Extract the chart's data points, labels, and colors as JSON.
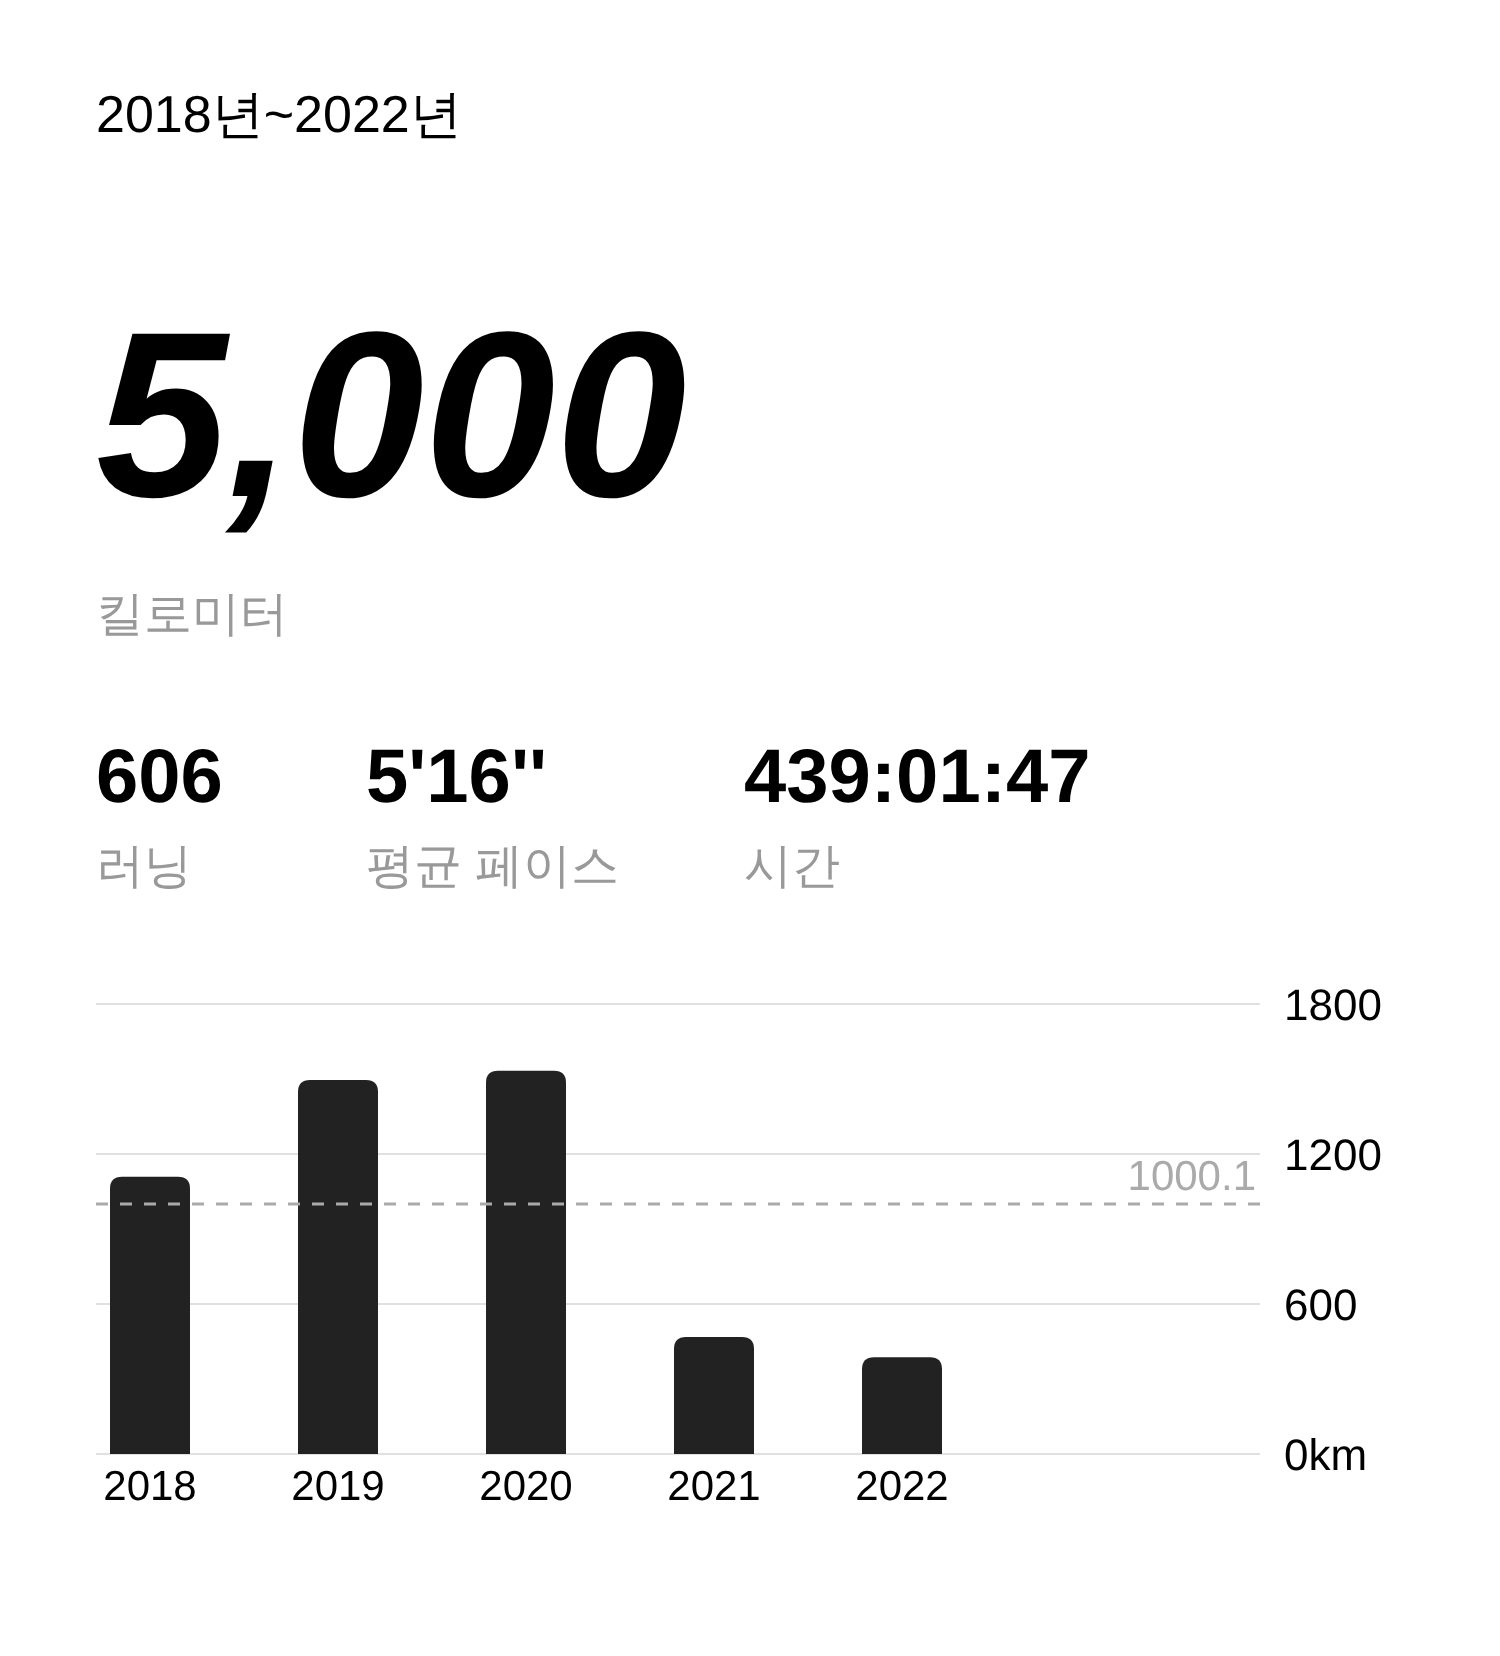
{
  "chart_data": {
    "type": "bar",
    "title": "2018년~2022년",
    "annotations": [
      "5,000",
      "킬로미터",
      "606",
      "러닝",
      "5'16''",
      "평균 페이스",
      "439:01:47",
      "시간"
    ],
    "categories": [
      "2018",
      "2019",
      "2020",
      "2021",
      "2022"
    ],
    "values": [
      1109,
      1496,
      1533,
      468,
      387
    ],
    "color": "#222222",
    "ylim": [
      0,
      1800
    ],
    "yticks": [
      {
        "value": 0,
        "label": "0km"
      },
      600,
      1200,
      1800
    ],
    "grid": "y",
    "ref_lines": [
      {
        "axis": "y",
        "value": 1000.1,
        "label": "1000.1",
        "color": "#aaaaaa",
        "line_style": "dashed"
      }
    ]
  }
}
